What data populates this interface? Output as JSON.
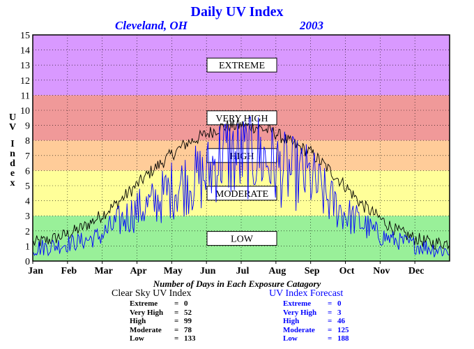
{
  "chart_data": {
    "type": "line",
    "title": "Daily UV Index",
    "subtitle_location": "Cleveland, OH",
    "subtitle_year": "2003",
    "ylabel": "UV Index",
    "xlabel": "",
    "ylim": [
      0,
      15
    ],
    "yticks": [
      "0",
      "1",
      "2",
      "3",
      "4",
      "5",
      "6",
      "7",
      "8",
      "9",
      "10",
      "11",
      "12",
      "13",
      "14",
      "15"
    ],
    "xticks": [
      "Jan",
      "Feb",
      "Mar",
      "Apr",
      "May",
      "Jun",
      "Jul",
      "Aug",
      "Sep",
      "Oct",
      "Nov",
      "Dec"
    ],
    "grid": true,
    "bands": [
      {
        "label": "LOW",
        "from": 0,
        "to": 3,
        "color": "#99f099"
      },
      {
        "label": "MODERATE",
        "from": 3,
        "to": 6,
        "color": "#ffff99"
      },
      {
        "label": "HIGH",
        "from": 6,
        "to": 8,
        "color": "#ffcc99"
      },
      {
        "label": "VERY HIGH",
        "from": 8,
        "to": 11,
        "color": "#f09999"
      },
      {
        "label": "EXTREME",
        "from": 11,
        "to": 15,
        "color": "#d999ff"
      }
    ],
    "series": [
      {
        "name": "Clear Sky UV Index",
        "color": "#000000",
        "x": [
          "Jan 1",
          "Jan 15",
          "Feb 1",
          "Feb 15",
          "Mar 1",
          "Mar 15",
          "Apr 1",
          "Apr 15",
          "May 1",
          "May 15",
          "Jun 1",
          "Jun 15",
          "Jul 1",
          "Jul 15",
          "Aug 1",
          "Aug 15",
          "Sep 1",
          "Sep 15",
          "Oct 1",
          "Oct 15",
          "Nov 1",
          "Nov 15",
          "Dec 1",
          "Dec 15",
          "Dec 31"
        ],
        "values": [
          1.2,
          1.4,
          1.8,
          2.3,
          3.0,
          3.8,
          5.0,
          6.0,
          7.0,
          7.8,
          8.4,
          8.9,
          9.0,
          8.9,
          8.5,
          7.8,
          7.2,
          6.2,
          5.0,
          3.8,
          2.8,
          2.0,
          1.5,
          1.2,
          1.2
        ]
      },
      {
        "name": "UV Index Forecast",
        "color": "#0000ff",
        "x": [
          "Jan 1",
          "Jan 15",
          "Feb 1",
          "Feb 15",
          "Mar 1",
          "Mar 15",
          "Apr 1",
          "Apr 15",
          "May 1",
          "May 15",
          "Jun 1",
          "Jun 15",
          "Jul 1",
          "Jul 15",
          "Aug 1",
          "Aug 15",
          "Sep 1",
          "Sep 15",
          "Oct 1",
          "Oct 15",
          "Nov 1",
          "Nov 15",
          "Dec 1",
          "Dec 15",
          "Dec 31"
        ],
        "values": [
          0.8,
          0.9,
          1.1,
          1.3,
          1.6,
          2.4,
          3.2,
          3.6,
          4.5,
          5.0,
          5.4,
          6.8,
          6.5,
          6.9,
          6.0,
          5.6,
          5.2,
          4.0,
          3.0,
          2.4,
          1.6,
          1.3,
          1.0,
          0.8,
          0.6
        ]
      }
    ]
  },
  "caption": "Number of Days in Each Exposure Catagory",
  "clear_sky": {
    "heading": "Clear Sky UV Index",
    "rows": [
      {
        "label": "Extreme",
        "value": "0"
      },
      {
        "label": "Very High",
        "value": "52"
      },
      {
        "label": "High",
        "value": "99"
      },
      {
        "label": "Moderate",
        "value": "78"
      },
      {
        "label": "Low",
        "value": "133"
      }
    ]
  },
  "forecast": {
    "heading": "UV Index Forecast",
    "rows": [
      {
        "label": "Extreme",
        "value": "0"
      },
      {
        "label": "Very High",
        "value": "3"
      },
      {
        "label": "High",
        "value": "46"
      },
      {
        "label": "Moderate",
        "value": "125"
      },
      {
        "label": "Low",
        "value": "188"
      }
    ]
  }
}
